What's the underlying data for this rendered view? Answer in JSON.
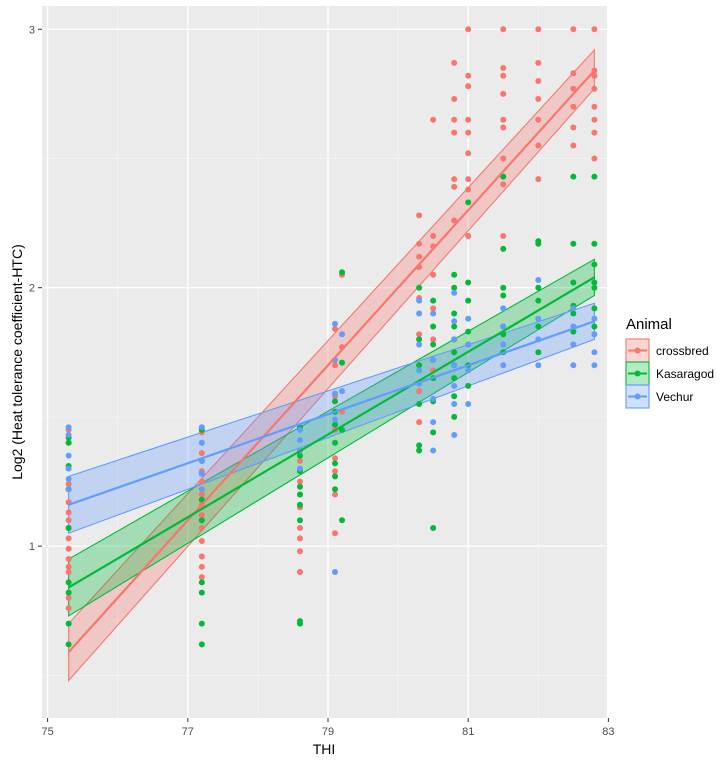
{
  "chart_data": {
    "type": "scatter",
    "title": "",
    "xlabel": "THI",
    "ylabel": "Log2 (Heat tolerance coefficient-HTC)",
    "xlim": [
      74.92,
      82.98
    ],
    "ylim": [
      0.335,
      3.09
    ],
    "x_ticks": [
      75,
      77,
      79,
      81,
      83
    ],
    "y_ticks": [
      1,
      2,
      3
    ],
    "grid": true,
    "legend": {
      "title": "Animal",
      "position": "right"
    },
    "series": [
      {
        "name": "crossbred",
        "color": "#f8766d",
        "fit": {
          "x": [
            75.3,
            82.8
          ],
          "y": [
            0.59,
            2.84
          ],
          "lower": [
            0.48,
            2.77
          ],
          "upper": [
            0.7,
            2.92
          ]
        },
        "points": [
          [
            75.3,
            0.9
          ],
          [
            75.3,
            0.92
          ],
          [
            75.3,
            0.95
          ],
          [
            75.3,
            0.99
          ],
          [
            75.3,
            1.03
          ],
          [
            75.3,
            1.07
          ],
          [
            75.3,
            1.1
          ],
          [
            75.3,
            1.13
          ],
          [
            75.3,
            1.17
          ],
          [
            75.3,
            1.24
          ],
          [
            75.3,
            1.4
          ],
          [
            75.3,
            1.45
          ],
          [
            75.3,
            0.8
          ],
          [
            75.3,
            0.76
          ],
          [
            77.2,
            0.92
          ],
          [
            77.2,
            0.96
          ],
          [
            77.2,
            1.02
          ],
          [
            77.2,
            1.07
          ],
          [
            77.2,
            1.12
          ],
          [
            77.2,
            1.16
          ],
          [
            77.2,
            1.2
          ],
          [
            77.2,
            1.25
          ],
          [
            77.2,
            1.29
          ],
          [
            77.2,
            1.33
          ],
          [
            77.2,
            1.36
          ],
          [
            77.2,
            1.44
          ],
          [
            77.2,
            0.88
          ],
          [
            78.6,
            0.9
          ],
          [
            78.6,
            0.98
          ],
          [
            78.6,
            1.03
          ],
          [
            78.6,
            1.07
          ],
          [
            78.6,
            1.15
          ],
          [
            78.6,
            1.2
          ],
          [
            78.6,
            1.25
          ],
          [
            78.6,
            1.29
          ],
          [
            78.6,
            1.33
          ],
          [
            78.6,
            1.37
          ],
          [
            79.1,
            1.05
          ],
          [
            79.1,
            1.2
          ],
          [
            79.1,
            1.29
          ],
          [
            79.1,
            1.34
          ],
          [
            79.1,
            1.45
          ],
          [
            79.1,
            1.58
          ],
          [
            79.1,
            1.7
          ],
          [
            79.1,
            1.84
          ],
          [
            79.2,
            2.05
          ],
          [
            79.2,
            1.77
          ],
          [
            79.2,
            1.52
          ],
          [
            80.3,
            1.48
          ],
          [
            80.3,
            1.6
          ],
          [
            80.3,
            1.7
          ],
          [
            80.3,
            1.82
          ],
          [
            80.3,
            1.96
          ],
          [
            80.3,
            2.08
          ],
          [
            80.3,
            2.12
          ],
          [
            80.3,
            2.17
          ],
          [
            80.3,
            2.28
          ],
          [
            80.5,
            1.68
          ],
          [
            80.5,
            1.8
          ],
          [
            80.5,
            1.92
          ],
          [
            80.5,
            2.05
          ],
          [
            80.5,
            2.16
          ],
          [
            80.5,
            2.2
          ],
          [
            80.5,
            2.65
          ],
          [
            80.8,
            2.42
          ],
          [
            80.8,
            2.39
          ],
          [
            80.8,
            2.26
          ],
          [
            80.8,
            2.6
          ],
          [
            80.8,
            2.65
          ],
          [
            80.8,
            2.73
          ],
          [
            80.8,
            2.87
          ],
          [
            81.0,
            2.2
          ],
          [
            81.0,
            2.38
          ],
          [
            81.0,
            2.42
          ],
          [
            81.0,
            2.52
          ],
          [
            81.0,
            2.6
          ],
          [
            81.0,
            2.65
          ],
          [
            81.0,
            2.78
          ],
          [
            81.0,
            2.82
          ],
          [
            81.0,
            3.0
          ],
          [
            81.5,
            2.2
          ],
          [
            81.5,
            2.4
          ],
          [
            81.5,
            2.5
          ],
          [
            81.5,
            2.62
          ],
          [
            81.5,
            2.65
          ],
          [
            81.5,
            2.75
          ],
          [
            81.5,
            2.82
          ],
          [
            81.5,
            2.85
          ],
          [
            81.5,
            3.0
          ],
          [
            82.0,
            2.42
          ],
          [
            82.0,
            2.55
          ],
          [
            82.0,
            2.65
          ],
          [
            82.0,
            2.73
          ],
          [
            82.0,
            2.8
          ],
          [
            82.0,
            2.87
          ],
          [
            82.0,
            3.0
          ],
          [
            82.5,
            2.55
          ],
          [
            82.5,
            2.62
          ],
          [
            82.5,
            2.7
          ],
          [
            82.5,
            2.77
          ],
          [
            82.5,
            2.83
          ],
          [
            82.5,
            3.0
          ],
          [
            82.8,
            2.5
          ],
          [
            82.8,
            2.6
          ],
          [
            82.8,
            2.65
          ],
          [
            82.8,
            2.7
          ],
          [
            82.8,
            2.77
          ],
          [
            82.8,
            2.82
          ],
          [
            82.8,
            2.84
          ],
          [
            82.8,
            3.0
          ]
        ]
      },
      {
        "name": "Kasaragod",
        "color": "#00ba38",
        "fit": {
          "x": [
            75.3,
            82.8
          ],
          "y": [
            0.84,
            2.04
          ],
          "lower": [
            0.73,
            1.97
          ],
          "upper": [
            0.95,
            2.11
          ]
        },
        "points": [
          [
            75.3,
            0.62
          ],
          [
            75.3,
            0.7
          ],
          [
            75.3,
            0.82
          ],
          [
            75.3,
            0.86
          ],
          [
            75.3,
            1.07
          ],
          [
            75.3,
            1.22
          ],
          [
            75.3,
            1.31
          ],
          [
            75.3,
            1.4
          ],
          [
            75.3,
            1.42
          ],
          [
            77.2,
            0.62
          ],
          [
            77.2,
            0.7
          ],
          [
            77.2,
            0.82
          ],
          [
            77.2,
            0.86
          ],
          [
            77.2,
            1.1
          ],
          [
            77.2,
            1.18
          ],
          [
            77.2,
            1.28
          ],
          [
            77.2,
            1.33
          ],
          [
            77.2,
            1.45
          ],
          [
            78.6,
            0.7
          ],
          [
            78.6,
            0.71
          ],
          [
            78.6,
            1.1
          ],
          [
            78.6,
            1.16
          ],
          [
            78.6,
            1.2
          ],
          [
            78.6,
            1.23
          ],
          [
            78.6,
            1.29
          ],
          [
            78.6,
            1.35
          ],
          [
            78.6,
            1.46
          ],
          [
            79.1,
            1.22
          ],
          [
            79.1,
            1.27
          ],
          [
            79.1,
            1.32
          ],
          [
            79.1,
            1.4
          ],
          [
            79.1,
            1.47
          ],
          [
            79.1,
            1.52
          ],
          [
            79.1,
            1.56
          ],
          [
            79.2,
            1.1
          ],
          [
            79.2,
            1.45
          ],
          [
            79.2,
            1.71
          ],
          [
            79.2,
            2.06
          ],
          [
            80.3,
            1.37
          ],
          [
            80.3,
            1.39
          ],
          [
            80.3,
            1.55
          ],
          [
            80.3,
            1.63
          ],
          [
            80.3,
            1.7
          ],
          [
            80.3,
            1.8
          ],
          [
            80.3,
            2.0
          ],
          [
            80.5,
            1.07
          ],
          [
            80.5,
            1.44
          ],
          [
            80.5,
            1.56
          ],
          [
            80.5,
            1.65
          ],
          [
            80.5,
            1.72
          ],
          [
            80.5,
            1.78
          ],
          [
            80.5,
            1.85
          ],
          [
            80.5,
            1.95
          ],
          [
            80.8,
            1.5
          ],
          [
            80.8,
            1.58
          ],
          [
            80.8,
            1.65
          ],
          [
            80.8,
            1.7
          ],
          [
            80.8,
            1.75
          ],
          [
            80.8,
            1.8
          ],
          [
            80.8,
            1.85
          ],
          [
            80.8,
            1.9
          ],
          [
            80.8,
            2.0
          ],
          [
            80.8,
            2.05
          ],
          [
            81.0,
            1.62
          ],
          [
            81.0,
            1.7
          ],
          [
            81.0,
            1.78
          ],
          [
            81.0,
            1.83
          ],
          [
            81.0,
            1.95
          ],
          [
            81.0,
            2.02
          ],
          [
            81.0,
            2.33
          ],
          [
            81.5,
            1.75
          ],
          [
            81.5,
            1.82
          ],
          [
            81.5,
            1.85
          ],
          [
            81.5,
            1.97
          ],
          [
            81.5,
            2.0
          ],
          [
            81.5,
            2.15
          ],
          [
            81.5,
            2.43
          ],
          [
            82.0,
            1.75
          ],
          [
            82.0,
            1.85
          ],
          [
            82.0,
            1.95
          ],
          [
            82.0,
            2.0
          ],
          [
            82.0,
            2.17
          ],
          [
            82.0,
            2.18
          ],
          [
            82.5,
            1.83
          ],
          [
            82.5,
            1.9
          ],
          [
            82.5,
            1.93
          ],
          [
            82.5,
            2.02
          ],
          [
            82.5,
            2.17
          ],
          [
            82.5,
            2.43
          ],
          [
            82.8,
            1.85
          ],
          [
            82.8,
            1.92
          ],
          [
            82.8,
            2.0
          ],
          [
            82.8,
            2.02
          ],
          [
            82.8,
            2.09
          ],
          [
            82.8,
            2.17
          ],
          [
            82.8,
            2.43
          ]
        ]
      },
      {
        "name": "Vechur",
        "color": "#619cff",
        "fit": {
          "x": [
            75.3,
            82.8
          ],
          "y": [
            1.16,
            1.87
          ],
          "lower": [
            1.05,
            1.8
          ],
          "upper": [
            1.27,
            1.94
          ]
        },
        "points": [
          [
            75.3,
            1.22
          ],
          [
            75.3,
            1.26
          ],
          [
            75.3,
            1.3
          ],
          [
            75.3,
            1.35
          ],
          [
            75.3,
            1.43
          ],
          [
            75.3,
            1.46
          ],
          [
            77.2,
            1.22
          ],
          [
            77.2,
            1.28
          ],
          [
            77.2,
            1.33
          ],
          [
            77.2,
            1.4
          ],
          [
            77.2,
            1.46
          ],
          [
            78.6,
            1.3
          ],
          [
            78.6,
            1.37
          ],
          [
            78.6,
            1.41
          ],
          [
            78.6,
            1.45
          ],
          [
            79.1,
            0.9
          ],
          [
            79.1,
            1.49
          ],
          [
            79.1,
            1.59
          ],
          [
            79.1,
            1.72
          ],
          [
            79.1,
            1.86
          ],
          [
            79.2,
            1.82
          ],
          [
            79.2,
            1.6
          ],
          [
            80.3,
            1.63
          ],
          [
            80.3,
            1.68
          ],
          [
            80.3,
            1.78
          ],
          [
            80.3,
            1.9
          ],
          [
            80.3,
            1.95
          ],
          [
            80.5,
            1.37
          ],
          [
            80.5,
            1.48
          ],
          [
            80.5,
            1.57
          ],
          [
            80.5,
            1.72
          ],
          [
            80.5,
            1.9
          ],
          [
            80.8,
            1.43
          ],
          [
            80.8,
            1.55
          ],
          [
            80.8,
            1.62
          ],
          [
            80.8,
            1.7
          ],
          [
            80.8,
            1.8
          ],
          [
            80.8,
            1.87
          ],
          [
            80.8,
            1.98
          ],
          [
            81.0,
            1.55
          ],
          [
            81.0,
            1.68
          ],
          [
            81.0,
            1.78
          ],
          [
            81.0,
            1.88
          ],
          [
            81.5,
            1.7
          ],
          [
            81.5,
            1.78
          ],
          [
            81.5,
            1.85
          ],
          [
            81.5,
            1.92
          ],
          [
            82.0,
            1.7
          ],
          [
            82.0,
            1.8
          ],
          [
            82.0,
            1.88
          ],
          [
            82.0,
            2.03
          ],
          [
            82.5,
            1.7
          ],
          [
            82.5,
            1.78
          ],
          [
            82.5,
            1.85
          ],
          [
            82.5,
            1.92
          ],
          [
            82.8,
            1.7
          ],
          [
            82.8,
            1.75
          ],
          [
            82.8,
            1.82
          ],
          [
            82.8,
            1.88
          ]
        ]
      }
    ]
  }
}
